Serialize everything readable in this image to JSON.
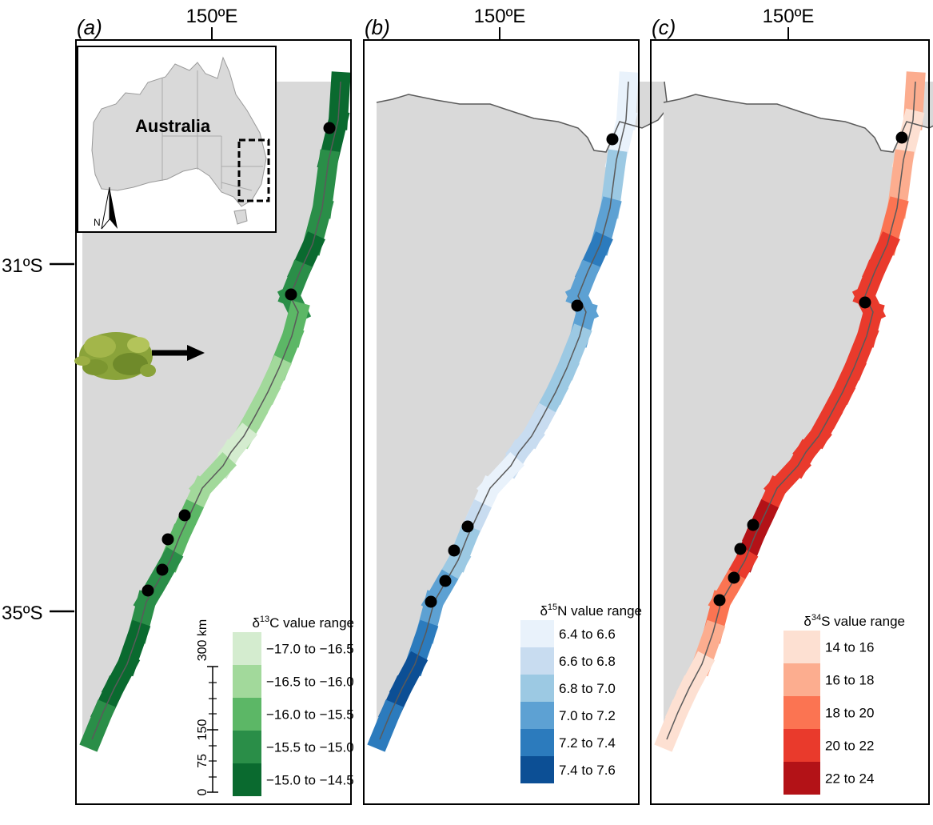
{
  "panels": [
    {
      "label": "(a)",
      "lon_label": "150ºE",
      "legend": {
        "title_prefix": "δ",
        "title_sup": "13",
        "title_suffix": "C value range",
        "items": [
          {
            "label": "−17.0 to −16.5",
            "color": "#d4eccf"
          },
          {
            "label": "−16.5 to −16.0",
            "color": "#a2d99b"
          },
          {
            "label": "−16.0 to −15.5",
            "color": "#5cb766"
          },
          {
            "label": "−15.5 to −15.0",
            "color": "#2a8e48"
          },
          {
            "label": "−15.0 to −14.5",
            "color": "#0a6a2f"
          }
        ]
      },
      "coast_classes": [
        4,
        4,
        3,
        3,
        4,
        3,
        3,
        2,
        2,
        1,
        1,
        1,
        0,
        0,
        1,
        1,
        2,
        2,
        3,
        3,
        3,
        4,
        4,
        4,
        3,
        2
      ]
    },
    {
      "label": "(b)",
      "lon_label": "150ºE",
      "legend": {
        "title_prefix": "δ",
        "title_sup": "15",
        "title_suffix": "N value range",
        "items": [
          {
            "label": "6.4 to 6.6",
            "color": "#e9f2fb"
          },
          {
            "label": "6.6 to 6.8",
            "color": "#c8dcf0"
          },
          {
            "label": "6.8 to 7.0",
            "color": "#9cc9e3"
          },
          {
            "label": "7.0 to 7.2",
            "color": "#5da1d3"
          },
          {
            "label": "7.2 to 7.4",
            "color": "#2c7bbd"
          },
          {
            "label": "7.4 to 7.6",
            "color": "#0c4f95"
          }
        ]
      },
      "coast_classes": [
        0,
        0,
        2,
        3,
        4,
        3,
        3,
        3,
        2,
        2,
        2,
        1,
        1,
        1,
        0,
        0,
        1,
        2,
        2,
        3,
        3,
        4,
        5,
        5,
        4,
        4
      ]
    },
    {
      "label": "(c)",
      "lon_label": "150ºE",
      "legend": {
        "title_prefix": "δ",
        "title_sup": "34",
        "title_suffix": "S value range",
        "items": [
          {
            "label": "14 to 16",
            "color": "#fde0d2"
          },
          {
            "label": "16 to 18",
            "color": "#fcad8f"
          },
          {
            "label": "18 to 20",
            "color": "#fb7452"
          },
          {
            "label": "20 to 22",
            "color": "#e93a2c"
          },
          {
            "label": "22 to 24",
            "color": "#b31217"
          }
        ]
      },
      "coast_classes": [
        1,
        0,
        1,
        2,
        3,
        3,
        3,
        3,
        3,
        3,
        3,
        3,
        3,
        3,
        3,
        3,
        4,
        4,
        3,
        2,
        2,
        1,
        0,
        0,
        0,
        1
      ]
    }
  ],
  "lat_labels": [
    "31ºS",
    "35ºS"
  ],
  "inset": {
    "country_label": "Australia",
    "north_label": "N"
  },
  "scale_bar": {
    "labels": [
      "0",
      "75",
      "150",
      "300 km"
    ]
  },
  "colors": {
    "land": "#d9d9d9",
    "coast_line": "#5a5a5a",
    "site_marker": "#000000",
    "frame": "#000000"
  }
}
